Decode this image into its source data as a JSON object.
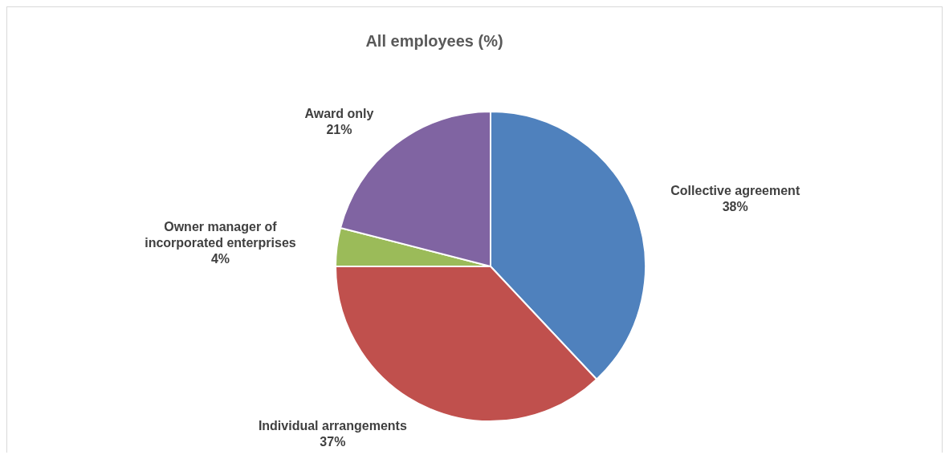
{
  "chart_data": {
    "type": "pie",
    "title": "All employees (%)",
    "categories": [
      "Collective agreement",
      "Individual arrangements",
      "Owner manager of incorporated enterprises",
      "Award only"
    ],
    "values": [
      38,
      37,
      4,
      21
    ],
    "colors": [
      "#4f81bd",
      "#c0504d",
      "#9bbb59",
      "#8064a2"
    ],
    "value_labels": [
      "38%",
      "37%",
      "4%",
      "21%"
    ]
  }
}
